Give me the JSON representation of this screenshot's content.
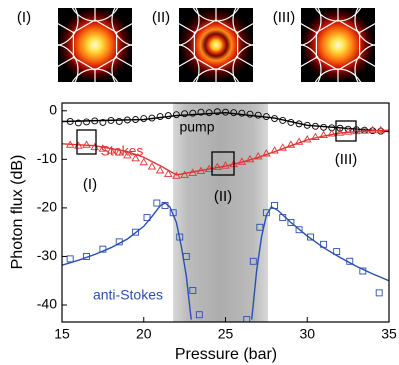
{
  "chart_data": {
    "type": "scatter",
    "insets": [
      "(I)",
      "(II)",
      "(III)"
    ],
    "annotations": [
      "(I)",
      "(II)",
      "(III)"
    ],
    "x_label": "Pressure (bar)",
    "y_label": "Photon flux (dB)",
    "xlim": [
      15,
      35
    ],
    "ylim": [
      -43.5,
      1.6
    ],
    "xticks": [
      15,
      20,
      25,
      30,
      35
    ],
    "yticks": [
      0,
      -10,
      -20,
      -30,
      -40
    ],
    "series": [
      {
        "name": "pump",
        "color": "#000000",
        "marker": "circle",
        "x": [
          15.5,
          16,
          16.5,
          17,
          17.5,
          18,
          18.5,
          19,
          19.5,
          20,
          20.5,
          21,
          21.5,
          22,
          22.5,
          23,
          23.5,
          24,
          24.5,
          25,
          25.5,
          26,
          26.5,
          27,
          27.5,
          28,
          28.5,
          29,
          29.5,
          30,
          30.5,
          31,
          31.5,
          32,
          32.5,
          33,
          33.5,
          34,
          34.5
        ],
        "values": [
          -2.2,
          -2.5,
          -2.3,
          -2.1,
          -2.4,
          -2.0,
          -2.2,
          -1.9,
          -1.8,
          -1.6,
          -1.5,
          -1.2,
          -1.0,
          -0.8,
          -0.6,
          -0.5,
          -0.3,
          -0.4,
          -0.2,
          -0.3,
          -0.4,
          -0.5,
          -0.7,
          -0.9,
          -1.2,
          -1.6,
          -2.0,
          -2.4,
          -2.7,
          -3.0,
          -3.2,
          -3.4,
          -3.5,
          -3.6,
          -3.8,
          -3.9,
          -4.0,
          -4.1,
          -4.2
        ],
        "fit_x": [
          15,
          20,
          22,
          25,
          28,
          30,
          35
        ],
        "fit_values": [
          -2.2,
          -1.8,
          -1.0,
          -0.4,
          -1.5,
          -3.0,
          -4.3
        ]
      },
      {
        "name": "Stokes",
        "color": "#e03535",
        "marker": "triangle",
        "x": [
          15.5,
          16,
          16.5,
          17,
          17.5,
          18,
          18.5,
          19,
          19.5,
          20,
          20.5,
          21,
          21.5,
          22,
          22.5,
          23,
          23.5,
          24,
          24.5,
          25,
          25.5,
          26,
          26.5,
          27,
          27.5,
          28,
          28.5,
          29,
          29.5,
          30,
          30.5,
          31,
          31.5,
          32,
          32.5,
          33,
          33.5,
          34,
          34.5
        ],
        "values": [
          -7.0,
          -7.2,
          -7.0,
          -7.5,
          -7.8,
          -8.2,
          -8.6,
          -9.2,
          -9.8,
          -10.6,
          -11.5,
          -12.3,
          -13.0,
          -13.4,
          -13.2,
          -12.8,
          -12.4,
          -12.0,
          -11.6,
          -11.3,
          -11.0,
          -10.5,
          -10.0,
          -9.4,
          -8.8,
          -8.2,
          -7.6,
          -7.0,
          -6.4,
          -5.9,
          -5.4,
          -5.0,
          -4.7,
          -4.5,
          -4.3,
          -4.2,
          -4.1,
          -4.0,
          -4.0
        ],
        "fit_x": [
          15,
          17,
          19,
          20,
          21,
          22,
          23,
          24,
          25,
          26,
          27,
          28,
          29,
          30,
          31,
          32,
          33,
          35
        ],
        "fit_values": [
          -6.8,
          -7.2,
          -8.4,
          -9.6,
          -11.3,
          -13.2,
          -12.6,
          -12.0,
          -11.4,
          -10.6,
          -9.6,
          -8.4,
          -7.2,
          -6.0,
          -5.2,
          -4.6,
          -4.3,
          -4.0
        ]
      },
      {
        "name": "anti-Stokes",
        "color": "#2a4fb0",
        "marker": "square",
        "x": [
          15.5,
          16.5,
          17.5,
          18.5,
          19.5,
          20.2,
          20.8,
          21.3,
          21.8,
          22.2,
          22.6,
          23,
          23.4,
          26.3,
          26.7,
          27.1,
          27.5,
          28,
          28.5,
          29,
          29.5,
          30.2,
          31,
          31.8,
          32.6,
          33.4,
          34.4
        ],
        "values": [
          -30.5,
          -30,
          -28.5,
          -27,
          -25,
          -22,
          -19,
          -19.5,
          -21,
          -26,
          -30,
          -37,
          -42,
          -43,
          -31,
          -24,
          -21,
          -19.5,
          -22,
          -23,
          -24.5,
          -26,
          -27.5,
          -29,
          -31,
          -33,
          -37.5
        ],
        "fit_x": [
          15,
          16,
          17,
          18,
          19,
          20,
          20.5,
          21,
          21.3,
          21.6,
          22,
          22.3,
          22.6,
          22.9,
          null,
          26.6,
          26.9,
          27.2,
          27.5,
          27.8,
          28.2,
          29,
          30,
          31,
          32,
          33,
          34,
          35
        ],
        "fit_values": [
          -31.8,
          -30.8,
          -29.6,
          -28.2,
          -26.4,
          -23.8,
          -21.8,
          -19.6,
          -19.0,
          -19.8,
          -23,
          -28,
          -34,
          -43,
          null,
          -43,
          -33,
          -26,
          -21.5,
          -19.8,
          -20.5,
          -23,
          -25.8,
          -28.2,
          -30.2,
          -32,
          -33.6,
          -35
        ]
      }
    ]
  }
}
